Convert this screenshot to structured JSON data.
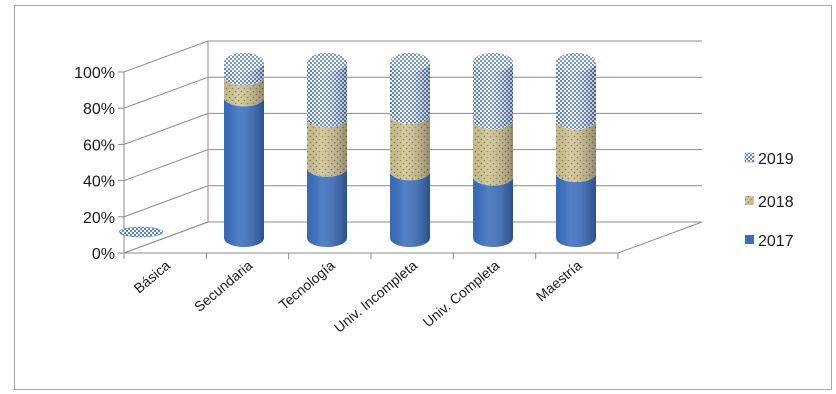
{
  "chart_data": {
    "type": "bar",
    "stacked": true,
    "percent_stacked": true,
    "shape": "3d-cylinder",
    "categories": [
      "Básica",
      "Secundaria",
      "Tecnología",
      "Univ. Incompleta",
      "Univ. Completa",
      "Maestría"
    ],
    "series": [
      {
        "name": "2017",
        "values": [
          0,
          80,
          40,
          38,
          35,
          37
        ],
        "color": "#3a6fbf",
        "pattern": "solid"
      },
      {
        "name": "2018",
        "values": [
          0,
          12,
          28,
          32,
          32,
          30
        ],
        "color": "#c9bd8e",
        "pattern": "dots"
      },
      {
        "name": "2019",
        "values": [
          0,
          8,
          32,
          30,
          33,
          33
        ],
        "color": "#7fa4d8",
        "pattern": "checker"
      }
    ],
    "yticks": [
      "0%",
      "20%",
      "40%",
      "60%",
      "80%",
      "100%"
    ],
    "ylim": [
      0,
      100
    ],
    "grid": true,
    "legend": "right"
  }
}
